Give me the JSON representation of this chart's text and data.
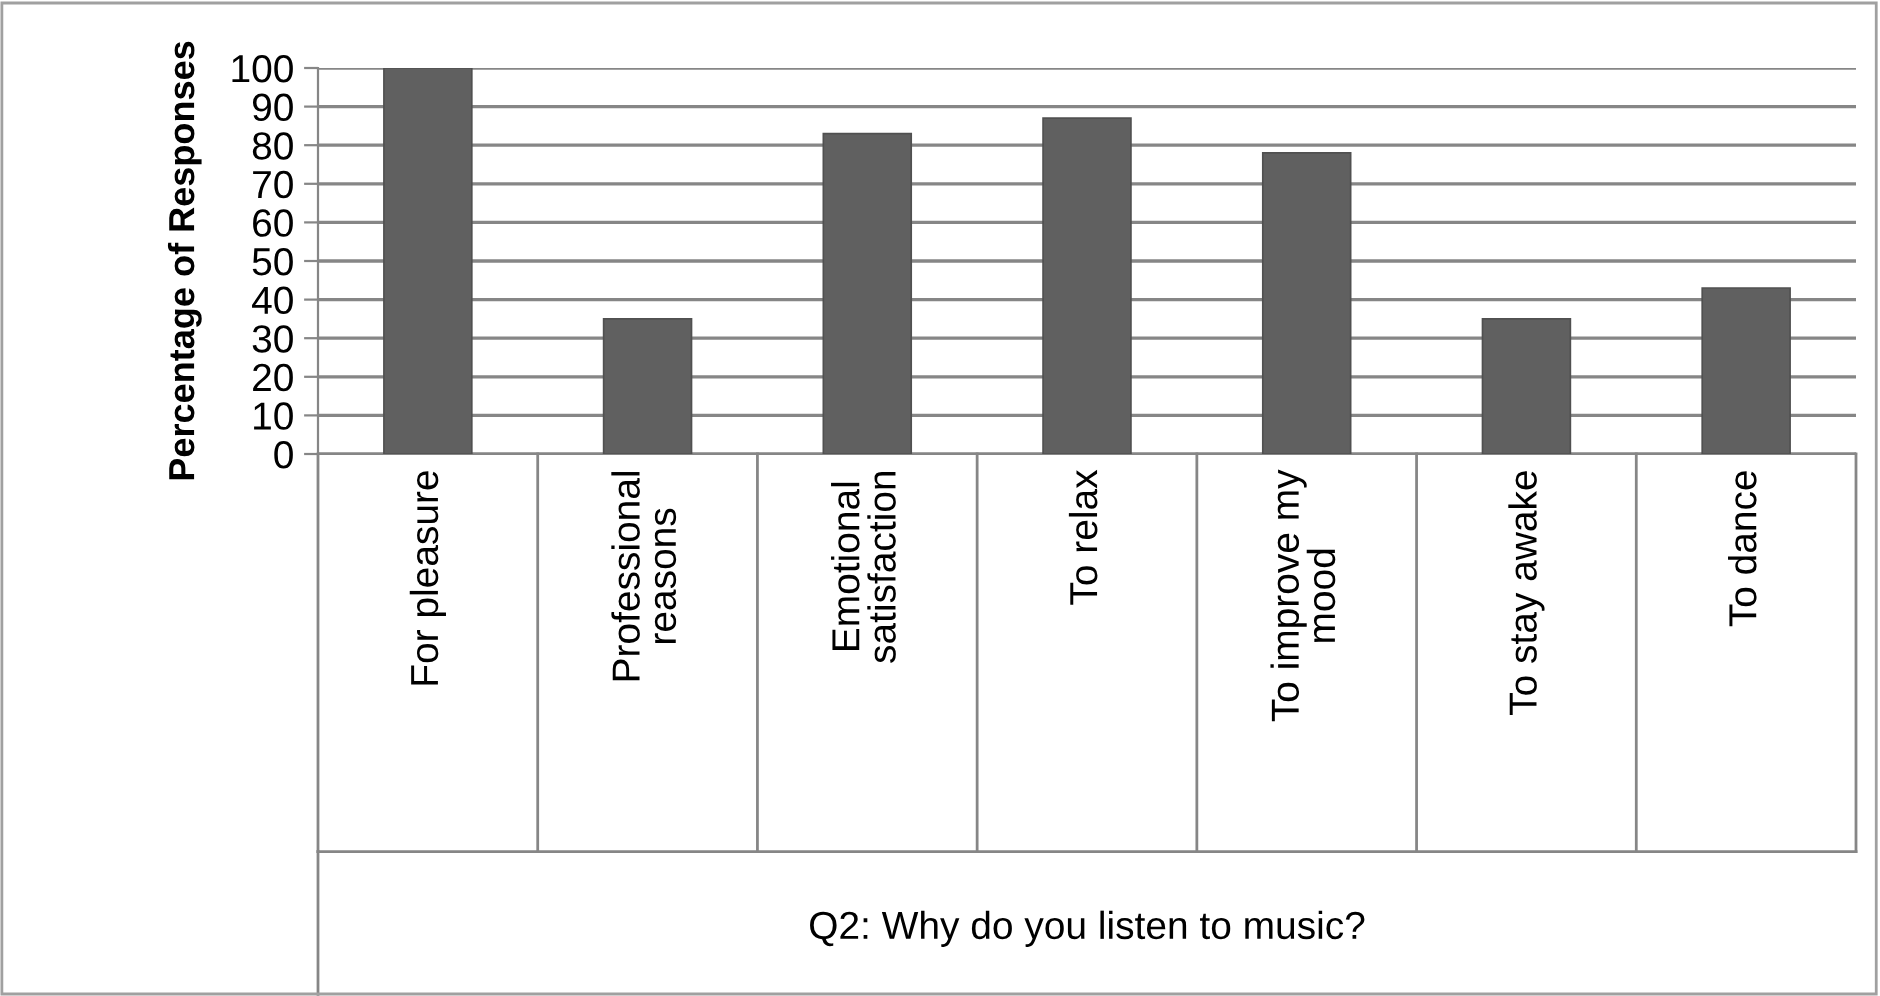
{
  "chart_data": {
    "type": "bar",
    "categories": [
      "For pleasure",
      "Professional reasons",
      "Emotional satisfaction",
      "To relax",
      "To improve my mood",
      "To stay awake",
      "To dance"
    ],
    "values": [
      100,
      35,
      83,
      87,
      78,
      35,
      43
    ],
    "color": "#606060",
    "xlabel": "Q2: Why do you listen to music?",
    "ylabel": "Percentage of Responses",
    "ylim": [
      0,
      100
    ],
    "yticks": [
      0,
      10,
      20,
      30,
      40,
      50,
      60,
      70,
      80,
      90,
      100
    ],
    "grid": "y",
    "legend": false
  }
}
